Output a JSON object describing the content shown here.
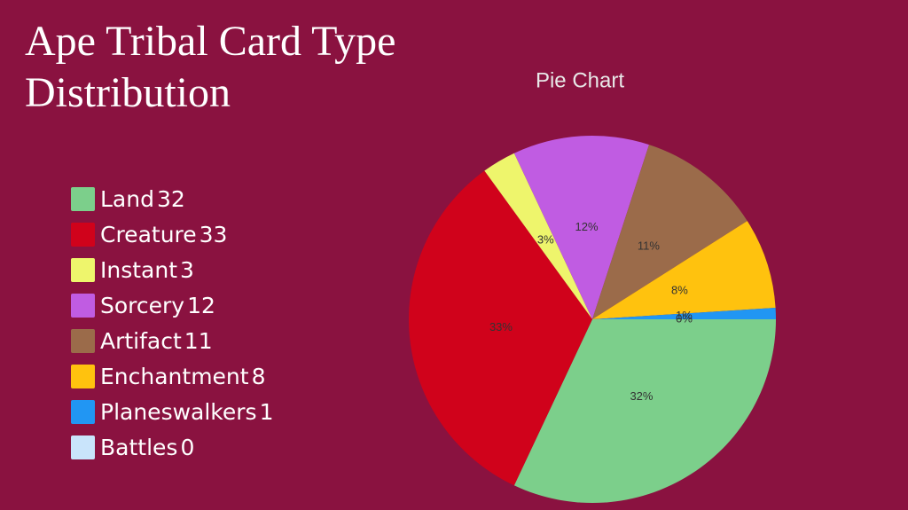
{
  "chart_data": {
    "type": "pie",
    "title": "Ape Tribal Card Type Distribution",
    "subtitle": "Pie Chart",
    "categories": [
      "Land",
      "Creature",
      "Instant",
      "Sorcery",
      "Artifact",
      "Enchantment",
      "Planeswalkers",
      "Battles"
    ],
    "values": [
      32,
      33,
      3,
      12,
      11,
      8,
      1,
      0
    ],
    "value_labels": [
      "32%",
      "33%",
      "3%",
      "12%",
      "11%",
      "8%",
      "1%",
      "0%"
    ],
    "colors": [
      "#7ccf8b",
      "#d0021b",
      "#eef56c",
      "#c05ce2",
      "#9b6b4a",
      "#ffc20e",
      "#2196f3",
      "#c9e4fb"
    ]
  }
}
